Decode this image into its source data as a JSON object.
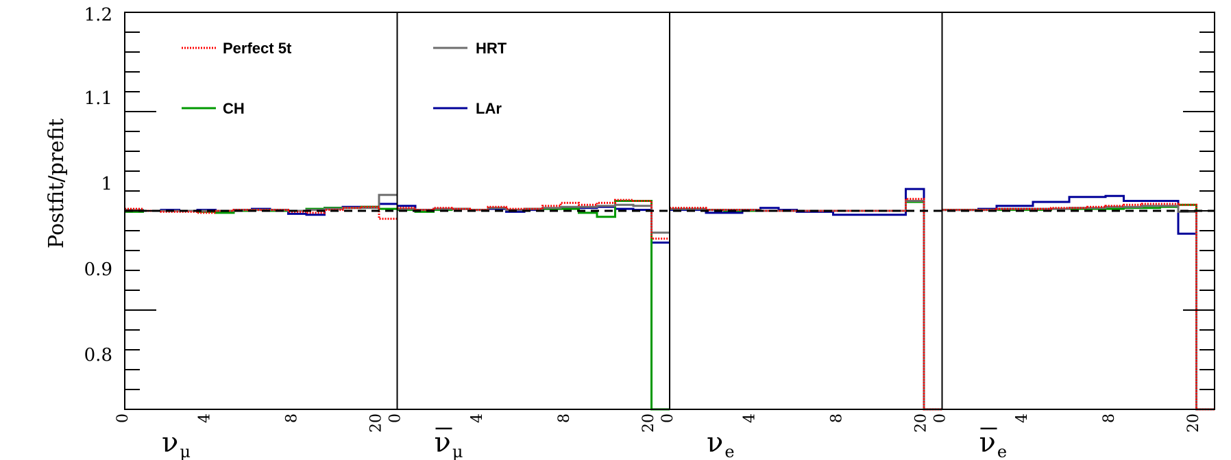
{
  "chart_data": {
    "type": "line",
    "ylabel": "Postfit/prefit",
    "ylim": [
      0.8,
      1.2
    ],
    "yticks": [
      "1.2",
      "1.1",
      "1",
      "0.9",
      "0.8"
    ],
    "reference_line": 1.0,
    "panels": [
      {
        "label": "ν",
        "sub": "μ",
        "bar": false,
        "ticks": [
          "0",
          "4",
          "8",
          "20"
        ]
      },
      {
        "label": "ν",
        "sub": "μ",
        "bar": true,
        "ticks": [
          "0",
          "4",
          "8",
          "20"
        ]
      },
      {
        "label": "ν",
        "sub": "e",
        "bar": false,
        "ticks": [
          "0",
          "4",
          "8",
          "20"
        ]
      },
      {
        "label": "ν",
        "sub": "e",
        "bar": true,
        "ticks": [
          "0",
          "4",
          "8",
          "20"
        ]
      }
    ],
    "series": [
      {
        "name": "Perfect 5t",
        "color": "#ff0000",
        "dash": "dotted",
        "values": [
          [
            1.002,
            1.0,
            0.999,
            0.999,
            0.998,
            1.0,
            1.001,
            1.001,
            1.001,
            0.999,
            0.998,
            1.001,
            1.003,
            1.004,
            0.992
          ],
          [
            1.003,
            1.001,
            1.003,
            1.002,
            1.001,
            1.004,
            1.002,
            1.002,
            1.005,
            1.008,
            1.006,
            1.008,
            1.011,
            1.01,
            0.972
          ],
          [
            1.003,
            1.003,
            1.001,
            1.001,
            1.001,
            1.0,
            1.0,
            1.0,
            1.0,
            1.0,
            1.0,
            1.0,
            1.0,
            1.012,
            0.8
          ],
          [
            1.001,
            1.001,
            1.001,
            1.002,
            1.002,
            1.002,
            1.003,
            1.003,
            1.004,
            1.005,
            1.006,
            1.007,
            1.007,
            1.006,
            0.8
          ]
        ]
      },
      {
        "name": "HRT",
        "color": "#6e6e6e",
        "dash": "solid",
        "values": [
          [
            1.001,
            1.0,
            1.0,
            1.0,
            1.0,
            1.0,
            1.001,
            1.001,
            1.001,
            1.0,
            1.001,
            1.002,
            1.003,
            1.003,
            1.016
          ],
          [
            1.002,
            1.001,
            1.002,
            1.002,
            1.001,
            1.003,
            1.001,
            1.002,
            1.003,
            1.004,
            1.004,
            1.005,
            1.006,
            1.005,
            0.978
          ],
          [
            1.002,
            1.002,
            1.001,
            1.001,
            1.001,
            1.0,
            1.0,
            1.0,
            1.0,
            1.0,
            1.0,
            1.0,
            1.0,
            1.01,
            0.8
          ],
          [
            1.001,
            1.001,
            1.001,
            1.002,
            1.002,
            1.002,
            1.002,
            1.003,
            1.003,
            1.004,
            1.004,
            1.005,
            1.005,
            0.999,
            0.8
          ]
        ]
      },
      {
        "name": "CH",
        "color": "#009900",
        "dash": "solid",
        "values": [
          [
            0.999,
            1.0,
            1.0,
            1.0,
            0.999,
            0.998,
            1.0,
            1.001,
            1.0,
            1.0,
            1.002,
            1.003,
            1.003,
            1.004,
            1.002
          ],
          [
            1.001,
            0.999,
            1.001,
            1.002,
            1.001,
            1.003,
            1.001,
            1.002,
            1.002,
            1.002,
            0.998,
            0.994,
            1.01,
            1.01,
            0.8
          ],
          [
            1.002,
            1.002,
            1.001,
            1.0,
            1.0,
            1.0,
            1.0,
            1.0,
            1.0,
            1.0,
            1.0,
            1.0,
            1.0,
            1.009,
            0.8
          ],
          [
            1.001,
            1.001,
            1.001,
            1.001,
            1.001,
            1.001,
            1.002,
            1.002,
            1.002,
            1.002,
            1.003,
            1.003,
            1.004,
            1.006,
            0.8
          ]
        ]
      },
      {
        "name": "LAr",
        "color": "#000099",
        "dash": "solid",
        "values": [
          [
            1.0,
            1.0,
            1.001,
            1.0,
            1.001,
            1.0,
            1.001,
            1.002,
            1.001,
            0.997,
            0.996,
            1.003,
            1.004,
            1.004,
            1.007
          ],
          [
            1.005,
            1.001,
            1.002,
            1.002,
            1.001,
            1.002,
            0.999,
            1.001,
            1.002,
            1.003,
            1.003,
            1.004,
            1.002,
            1.001,
            0.968
          ],
          [
            1.001,
            1.001,
            0.998,
            0.998,
            1.001,
            1.003,
            1.001,
            0.999,
            0.999,
            0.996,
            0.996,
            0.996,
            0.996,
            1.022,
            0.8
          ],
          [
            1.001,
            1.001,
            1.002,
            1.005,
            1.005,
            1.009,
            1.009,
            1.014,
            1.014,
            1.015,
            1.01,
            1.01,
            1.01,
            0.977,
            0.8
          ]
        ]
      }
    ]
  }
}
